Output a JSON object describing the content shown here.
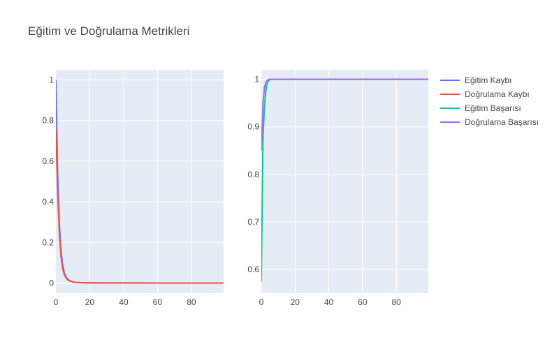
{
  "chart_data": {
    "title": "Eğitim ve Doğrulama Metrikleri",
    "type": "line",
    "legend_position": "top-right",
    "colors": {
      "plot_bg": "#e5ecf6",
      "grid": "#ffffff",
      "text": "#444444"
    },
    "legend": [
      {
        "name": "Eğitim Kaybı",
        "color": "#636efa"
      },
      {
        "name": "Doğrulama Kaybı",
        "color": "#ef553b"
      },
      {
        "name": "Eğitim Başarısı",
        "color": "#00cc96"
      },
      {
        "name": "Doğrulama Başarısı",
        "color": "#ab63fa"
      }
    ],
    "subplots": [
      {
        "id": "loss",
        "xlim": [
          0,
          99
        ],
        "ylim": [
          -0.05,
          1.05
        ],
        "xticks": [
          0,
          20,
          40,
          60,
          80
        ],
        "xtick_labels": [
          "0",
          "20",
          "40",
          "60",
          "80"
        ],
        "yticks": [
          0,
          0.2,
          0.4,
          0.6,
          0.8,
          1
        ],
        "ytick_labels": [
          "0",
          "0.2",
          "0.4",
          "0.6",
          "0.8",
          "1"
        ],
        "series": [
          {
            "name": "Eğitim Kaybı",
            "color": "#636efa",
            "x": [
              0,
              1,
              2,
              3,
              4,
              5,
              6,
              7,
              8,
              10,
              12,
              15,
              20,
              30,
              40,
              60,
              80,
              99
            ],
            "y": [
              1.0,
              0.55,
              0.3,
              0.16,
              0.09,
              0.05,
              0.03,
              0.02,
              0.012,
              0.006,
              0.003,
              0.0015,
              0.0008,
              0.0003,
              0.0001,
              5e-05,
              2e-05,
              1e-05
            ]
          },
          {
            "name": "Doğrulama Kaybı",
            "color": "#ef553b",
            "x": [
              0,
              1,
              2,
              3,
              4,
              5,
              6,
              7,
              8,
              10,
              12,
              15,
              20,
              30,
              40,
              60,
              80,
              99
            ],
            "y": [
              0.76,
              0.45,
              0.25,
              0.13,
              0.07,
              0.04,
              0.025,
              0.016,
              0.01,
              0.005,
              0.003,
              0.0015,
              0.0008,
              0.0003,
              0.0001,
              5e-05,
              2e-05,
              1e-05
            ]
          }
        ]
      },
      {
        "id": "accuracy",
        "xlim": [
          0,
          99
        ],
        "ylim": [
          0.55,
          1.02
        ],
        "xticks": [
          0,
          20,
          40,
          60,
          80
        ],
        "xtick_labels": [
          "0",
          "20",
          "40",
          "60",
          "80"
        ],
        "yticks": [
          0.6,
          0.7,
          0.8,
          0.9,
          1
        ],
        "ytick_labels": [
          "0.6",
          "0.7",
          "0.8",
          "0.9",
          "1"
        ],
        "series": [
          {
            "name": "Eğitim Kaybı",
            "color": "#636efa",
            "x": [],
            "y": []
          },
          {
            "name": "Eğitim Başarısı",
            "color": "#00cc96",
            "x": [
              0,
              1,
              2,
              3,
              4,
              5,
              6,
              8,
              10,
              20,
              40,
              60,
              80,
              99
            ],
            "y": [
              0.575,
              0.88,
              0.95,
              0.985,
              0.996,
              0.999,
              1.0,
              1.0,
              1.0,
              1.0,
              1.0,
              1.0,
              1.0,
              1.0
            ]
          },
          {
            "name": "Doğrulama Başarısı",
            "color": "#ab63fa",
            "x": [
              0,
              1,
              2,
              3,
              4,
              5,
              6,
              8,
              10,
              20,
              40,
              60,
              80,
              99
            ],
            "y": [
              0.85,
              0.95,
              0.985,
              0.996,
              0.999,
              1.0,
              1.0,
              1.0,
              1.0,
              1.0,
              1.0,
              1.0,
              1.0,
              1.0
            ]
          }
        ]
      }
    ]
  }
}
